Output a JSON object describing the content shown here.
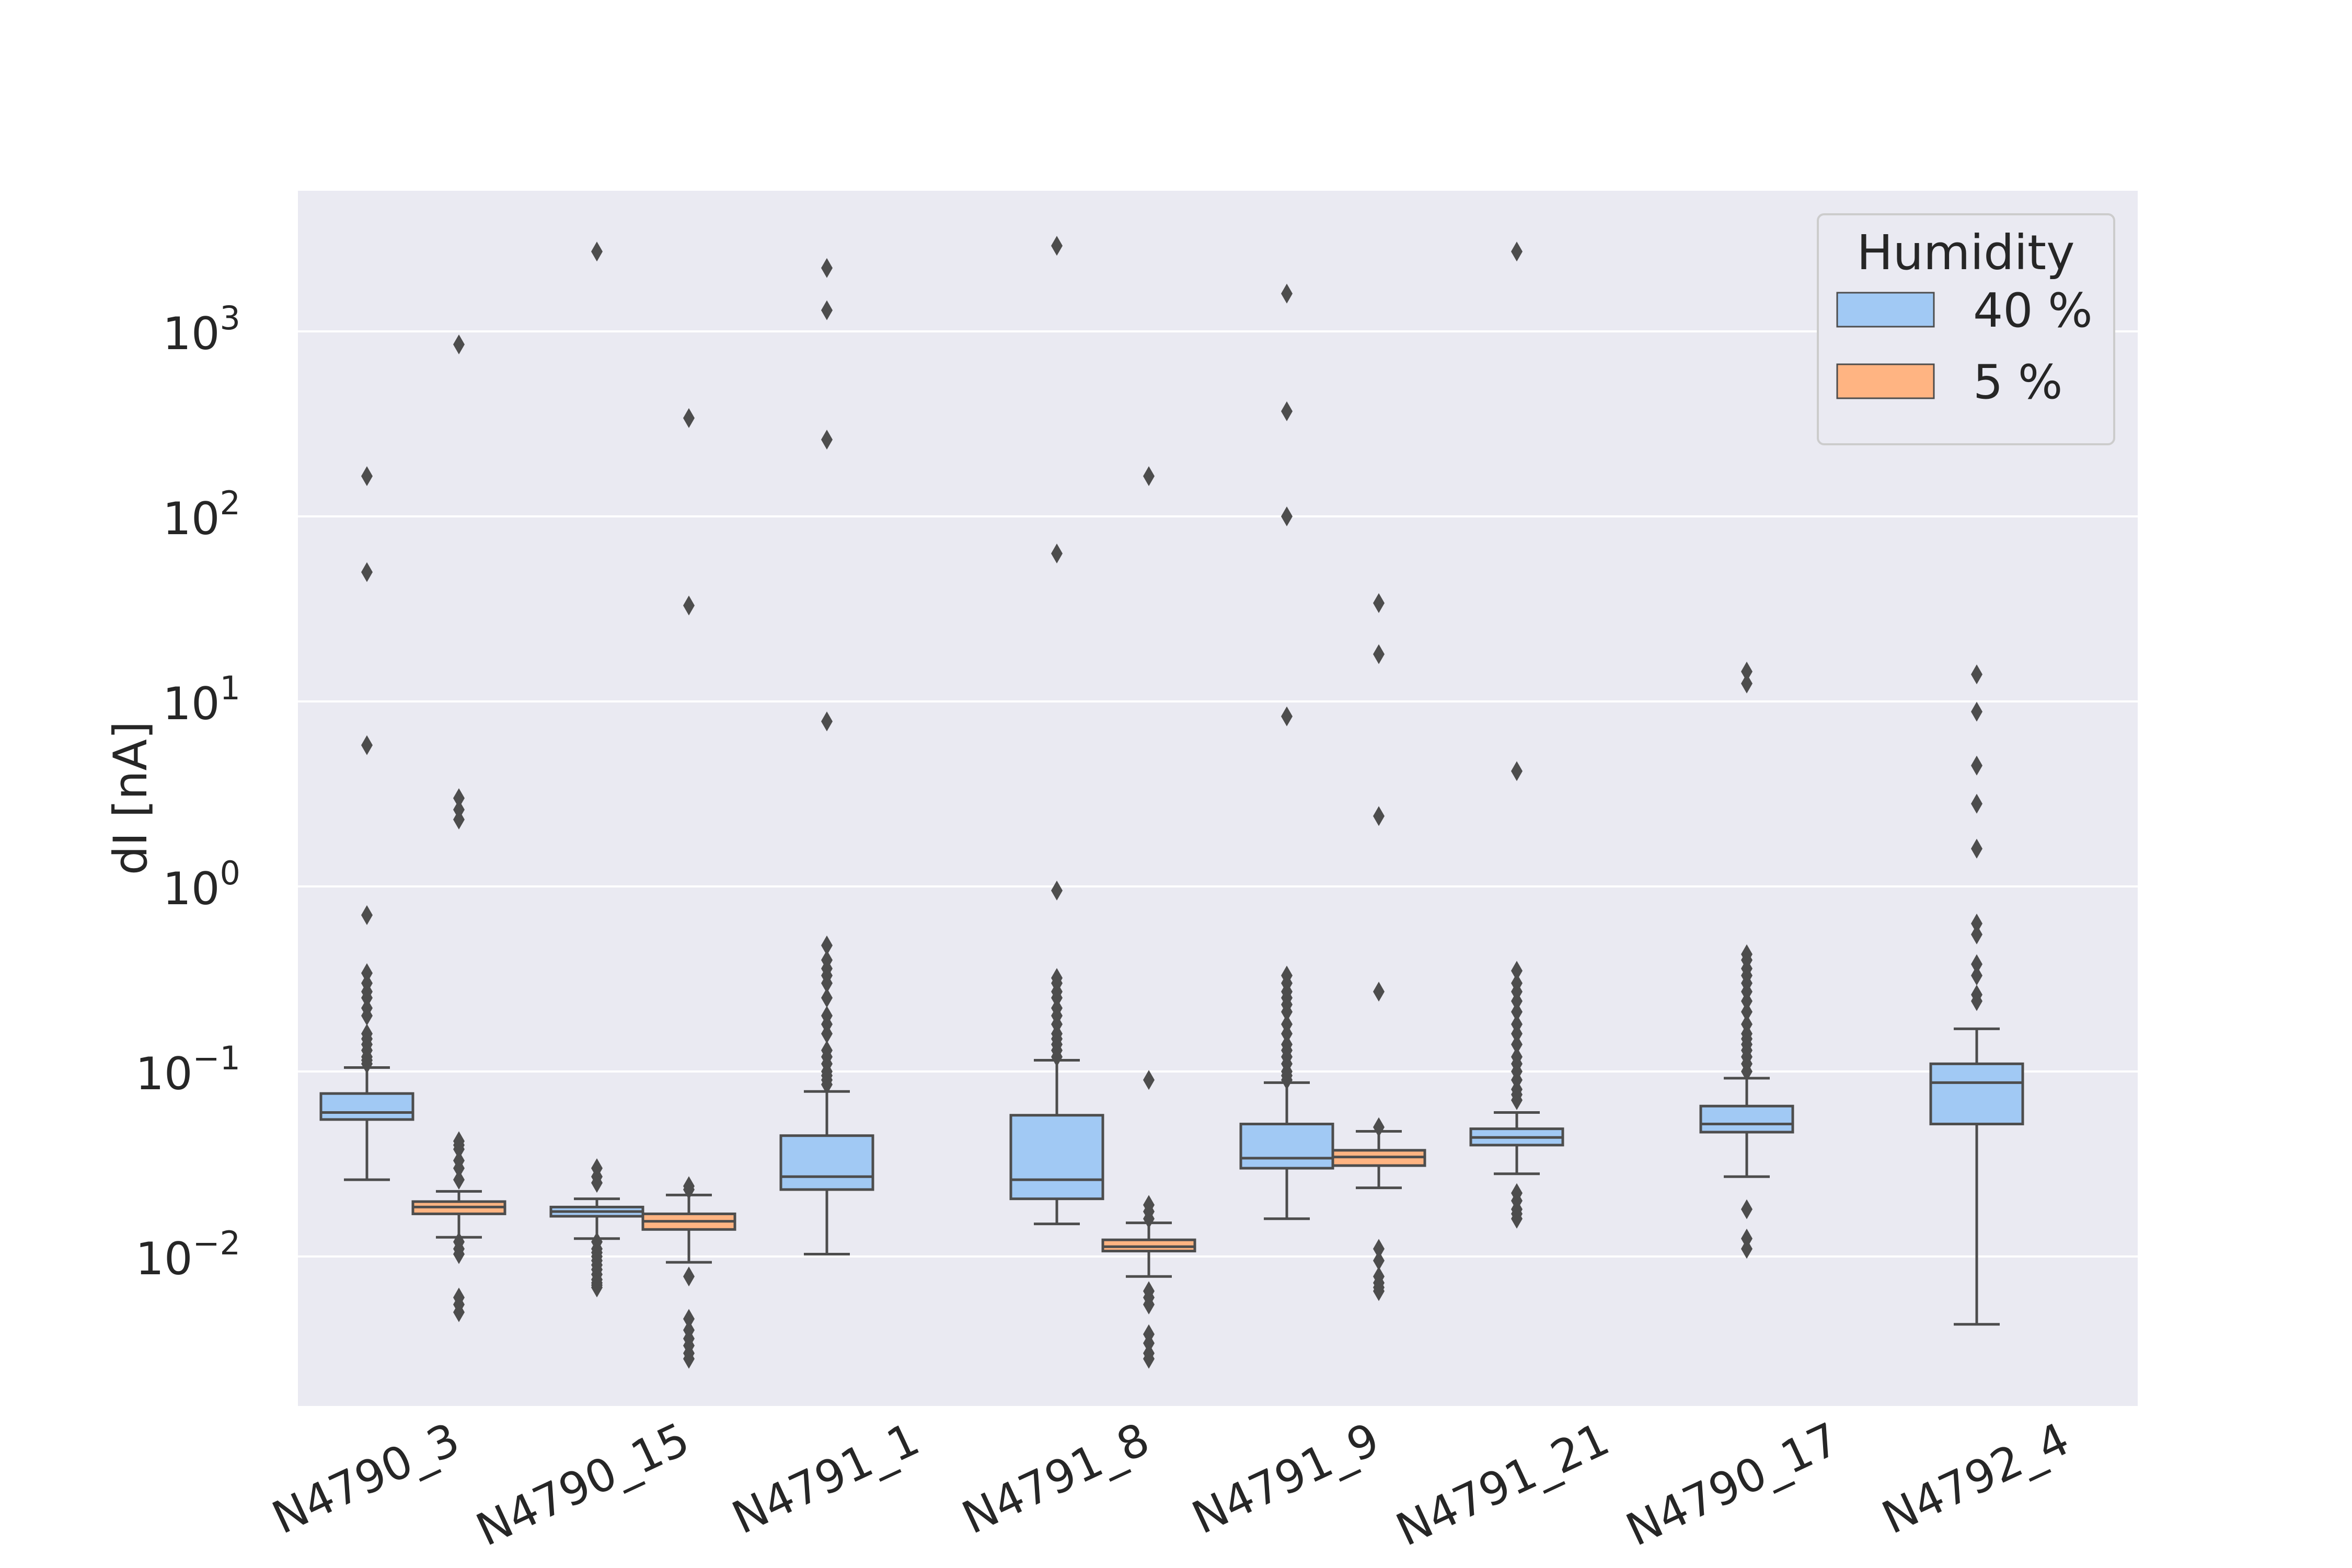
{
  "chart_data": {
    "type": "box",
    "title": "",
    "xlabel": "",
    "ylabel": "dI [nA]",
    "yscale": "log",
    "ylim": [
      0.0008,
      6000
    ],
    "yticks": [
      {
        "value": 0.01,
        "base": "10",
        "exp": "−2"
      },
      {
        "value": 0.1,
        "base": "10",
        "exp": "−1"
      },
      {
        "value": 1,
        "base": "10",
        "exp": "0"
      },
      {
        "value": 10,
        "base": "10",
        "exp": "1"
      },
      {
        "value": 100,
        "base": "10",
        "exp": "2"
      },
      {
        "value": 1000,
        "base": "10",
        "exp": "3"
      }
    ],
    "categories": [
      "N4790_3",
      "N4790_15",
      "N4791_1",
      "N4791_8",
      "N4791_9",
      "N4791_21",
      "N4790_17",
      "N4792_4"
    ],
    "grid": true,
    "legend": {
      "title": "Humidity",
      "position": "top-right"
    },
    "series": [
      {
        "name": "40 %",
        "color": "#a1c9f4",
        "boxes": [
          {
            "category": "N4790_3",
            "whislo": 0.026,
            "q1": 0.055,
            "med": 0.06,
            "q3": 0.076,
            "whishi": 0.105,
            "fliers": [
              165,
              50,
              5.8,
              0.7,
              0.34,
              0.3,
              0.27,
              0.25,
              0.22,
              0.2,
              0.16,
              0.15,
              0.14,
              0.13,
              0.12,
              0.115,
              0.11
            ]
          },
          {
            "category": "N4790_15",
            "whislo": 0.0125,
            "q1": 0.0165,
            "med": 0.0175,
            "q3": 0.0185,
            "whishi": 0.0205,
            "fliers": [
              2700,
              0.03,
              0.027,
              0.025,
              0.012,
              0.011,
              0.0105,
              0.01,
              0.0095,
              0.009,
              0.0085,
              0.008,
              0.0075,
              0.0072,
              0.007,
              0.0068
            ]
          },
          {
            "category": "N4791_1",
            "whislo": 0.0103,
            "q1": 0.023,
            "med": 0.027,
            "q3": 0.045,
            "whishi": 0.078,
            "fliers": [
              2200,
              1300,
              260,
              7.8,
              0.48,
              0.4,
              0.36,
              0.33,
              0.3,
              0.25,
              0.2,
              0.18,
              0.16,
              0.13,
              0.12,
              0.11,
              0.1,
              0.095,
              0.09,
              0.085
            ]
          },
          {
            "category": "N4791_8",
            "whislo": 0.015,
            "q1": 0.0205,
            "med": 0.026,
            "q3": 0.058,
            "whishi": 0.115,
            "fliers": [
              2900,
              63,
              0.95,
              0.32,
              0.3,
              0.27,
              0.25,
              0.22,
              0.2,
              0.18,
              0.16,
              0.15,
              0.14,
              0.13,
              0.12
            ]
          },
          {
            "category": "N4791_9",
            "whislo": 0.016,
            "q1": 0.03,
            "med": 0.034,
            "q3": 0.052,
            "whishi": 0.087,
            "fliers": [
              1600,
              370,
              100,
              8.3,
              0.33,
              0.3,
              0.27,
              0.25,
              0.23,
              0.21,
              0.18,
              0.16,
              0.14,
              0.13,
              0.12,
              0.11,
              0.1,
              0.095,
              0.09
            ]
          },
          {
            "category": "N4791_21",
            "whislo": 0.028,
            "q1": 0.04,
            "med": 0.044,
            "q3": 0.049,
            "whishi": 0.06,
            "fliers": [
              2700,
              4.2,
              0.35,
              0.3,
              0.27,
              0.24,
              0.21,
              0.18,
              0.16,
              0.14,
              0.12,
              0.11,
              0.1,
              0.09,
              0.08,
              0.075,
              0.07,
              0.022,
              0.02,
              0.018,
              0.017,
              0.016
            ]
          },
          {
            "category": "N4790_17",
            "whislo": 0.027,
            "q1": 0.047,
            "med": 0.052,
            "q3": 0.065,
            "whishi": 0.092,
            "fliers": [
              14.5,
              12.5,
              0.43,
              0.4,
              0.36,
              0.33,
              0.3,
              0.27,
              0.24,
              0.21,
              0.18,
              0.16,
              0.15,
              0.14,
              0.13,
              0.12,
              0.11,
              0.1,
              0.018,
              0.0125,
              0.011
            ]
          },
          {
            "category": "N4792_4",
            "whislo": 0.0043,
            "q1": 0.052,
            "med": 0.087,
            "q3": 0.11,
            "whishi": 0.17,
            "fliers": [
              14,
              8.8,
              4.5,
              2.8,
              1.6,
              0.63,
              0.55,
              0.38,
              0.33,
              0.26,
              0.24
            ]
          }
        ]
      },
      {
        "name": "5 %",
        "color": "#ffb482",
        "boxes": [
          {
            "category": "N4790_3",
            "whislo": 0.0127,
            "q1": 0.017,
            "med": 0.0185,
            "q3": 0.0198,
            "whishi": 0.0225,
            "fliers": [
              850,
              3.0,
              2.6,
              2.3,
              0.042,
              0.04,
              0.038,
              0.033,
              0.03,
              0.026,
              0.012,
              0.011,
              0.0103,
              0.006,
              0.0055,
              0.005
            ]
          },
          {
            "category": "N4790_15",
            "whislo": 0.0093,
            "q1": 0.014,
            "med": 0.0155,
            "q3": 0.017,
            "whishi": 0.0215,
            "fliers": [
              340,
              33,
              0.024,
              0.023,
              0.0078,
              0.0046,
              0.004,
              0.0036,
              0.0033,
              0.003,
              0.0028
            ]
          },
          {
            "category": "N4791_8",
            "whislo": 0.0078,
            "q1": 0.0107,
            "med": 0.0113,
            "q3": 0.0123,
            "whishi": 0.0152,
            "fliers": [
              165,
              0.09,
              0.019,
              0.0175,
              0.016,
              0.0065,
              0.006,
              0.0055,
              0.0038,
              0.0034,
              0.003,
              0.0028
            ]
          },
          {
            "category": "N4791_9",
            "whislo": 0.0235,
            "q1": 0.031,
            "med": 0.0345,
            "q3": 0.0375,
            "whishi": 0.0475,
            "fliers": [
              34,
              18,
              2.4,
              0.27,
              0.05,
              0.011,
              0.0095,
              0.0078,
              0.0072,
              0.0068,
              0.0065
            ]
          }
        ]
      }
    ]
  }
}
